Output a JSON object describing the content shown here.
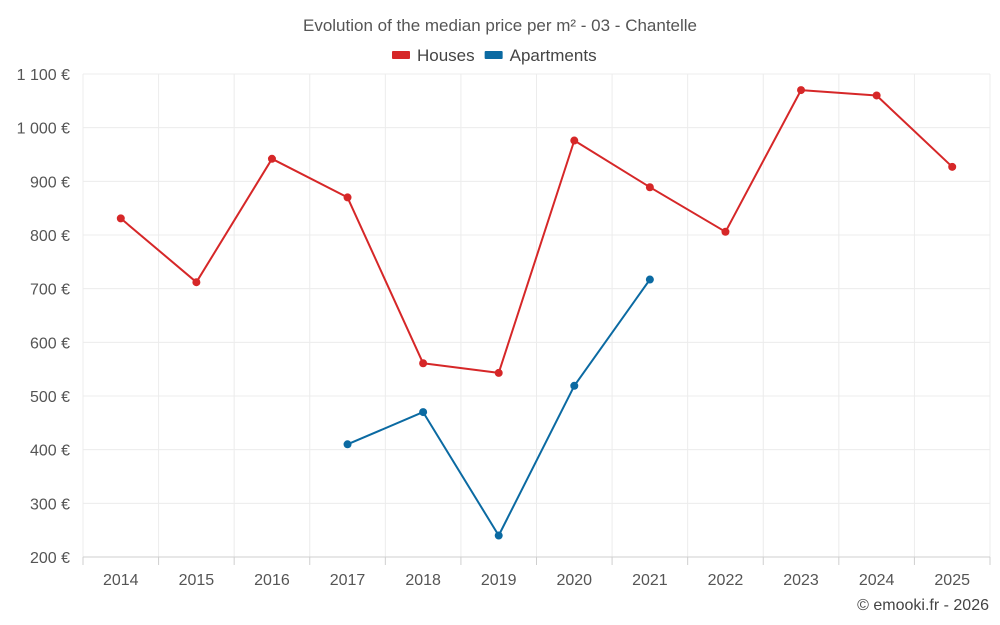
{
  "chart_data": {
    "type": "line",
    "title": "Evolution of the median price per m² - 03 - Chantelle",
    "xlabel": "",
    "ylabel": "",
    "x": [
      "2014",
      "2015",
      "2016",
      "2017",
      "2018",
      "2019",
      "2020",
      "2021",
      "2022",
      "2023",
      "2024",
      "2025"
    ],
    "ylim": [
      200,
      1100
    ],
    "yticks": [
      200,
      300,
      400,
      500,
      600,
      700,
      800,
      900,
      1000,
      1100
    ],
    "ytick_labels": [
      "200 €",
      "300 €",
      "400 €",
      "500 €",
      "600 €",
      "700 €",
      "800 €",
      "900 €",
      "1 000 €",
      "1 100 €"
    ],
    "grid": true,
    "legend_position": "top-center",
    "series": [
      {
        "name": "Houses",
        "color": "#d62728",
        "values": [
          831,
          712,
          942,
          870,
          561,
          543,
          976,
          889,
          806,
          1070,
          1060,
          927
        ]
      },
      {
        "name": "Apartments",
        "color": "#0b6aa2",
        "values": [
          null,
          null,
          null,
          410,
          470,
          240,
          519,
          717,
          null,
          null,
          null,
          null
        ]
      }
    ],
    "credit": "© emooki.fr - 2026"
  }
}
